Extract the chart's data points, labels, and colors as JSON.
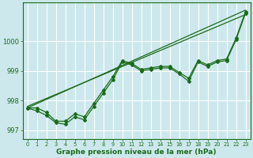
{
  "xlabel": "Graphe pression niveau de la mer (hPa)",
  "ylim": [
    996.7,
    1001.3
  ],
  "xlim": [
    -0.5,
    23.5
  ],
  "yticks": [
    997,
    998,
    999,
    1000
  ],
  "xticks": [
    0,
    1,
    2,
    3,
    4,
    5,
    6,
    7,
    8,
    9,
    10,
    11,
    12,
    13,
    14,
    15,
    16,
    17,
    18,
    19,
    20,
    21,
    22,
    23
  ],
  "background_color": "#cce8ec",
  "grid_color": "#ffffff",
  "line_color": "#1a6b1a",
  "series1": [
    997.75,
    997.75,
    997.6,
    997.3,
    997.3,
    997.55,
    997.45,
    997.9,
    998.35,
    998.8,
    999.35,
    999.25,
    999.05,
    999.1,
    999.15,
    999.15,
    998.95,
    998.75,
    999.35,
    999.2,
    999.35,
    999.4,
    1000.1,
    1001.0
  ],
  "series2": [
    997.75,
    997.65,
    997.5,
    997.25,
    997.2,
    997.45,
    997.35,
    997.8,
    998.25,
    998.7,
    999.3,
    999.2,
    999.0,
    999.05,
    999.1,
    999.1,
    998.9,
    998.65,
    999.3,
    999.15,
    999.3,
    999.35,
    1000.05,
    1000.95
  ],
  "trend1": [
    997.75,
    1001.05
  ],
  "trend2": [
    997.8,
    1000.9
  ],
  "figsize": [
    3.2,
    2.0
  ],
  "dpi": 100
}
